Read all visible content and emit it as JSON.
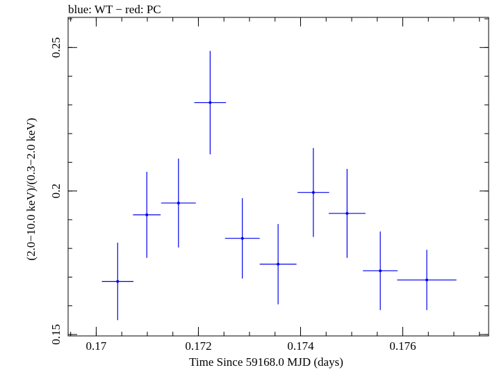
{
  "chart_data": {
    "type": "scatter",
    "title": "blue: WT − red: PC",
    "xlabel": "Time Since 59168.0 MJD (days)",
    "ylabel": "(2.0−10.0 keV)/(0.3−2.0 keV)",
    "xlim": [
      0.16945,
      0.17768
    ],
    "ylim": [
      0.1495,
      0.2605
    ],
    "x_ticks": [
      0.17,
      0.172,
      0.174,
      0.176
    ],
    "x_tick_labels": [
      "0.17",
      "0.172",
      "0.174",
      "0.176"
    ],
    "y_ticks": [
      0.15,
      0.2,
      0.25
    ],
    "y_tick_labels": [
      "0.15",
      "0.2",
      "0.25"
    ],
    "grid": false,
    "series": [
      {
        "name": "WT",
        "color": "#0000ee",
        "points": [
          {
            "x": 0.17042,
            "y": 0.1685,
            "xerr": 0.00031,
            "yerr": 0.0135
          },
          {
            "x": 0.17099,
            "y": 0.1917,
            "xerr": 0.00027,
            "yerr": 0.015
          },
          {
            "x": 0.17161,
            "y": 0.1958,
            "xerr": 0.00034,
            "yerr": 0.0155
          },
          {
            "x": 0.17223,
            "y": 0.2308,
            "xerr": 0.00031,
            "yerr": 0.018
          },
          {
            "x": 0.17286,
            "y": 0.1835,
            "xerr": 0.00034,
            "yerr": 0.014
          },
          {
            "x": 0.17356,
            "y": 0.1745,
            "xerr": 0.00036,
            "yerr": 0.014
          },
          {
            "x": 0.17425,
            "y": 0.1995,
            "xerr": 0.00031,
            "yerr": 0.0155
          },
          {
            "x": 0.17491,
            "y": 0.1922,
            "xerr": 0.00036,
            "yerr": 0.0155
          },
          {
            "x": 0.17556,
            "y": 0.1722,
            "xerr": 0.00034,
            "yerr": 0.0137
          },
          {
            "x": 0.17647,
            "y": 0.169,
            "xerr": 0.00058,
            "yerr": 0.0105
          }
        ]
      }
    ]
  }
}
